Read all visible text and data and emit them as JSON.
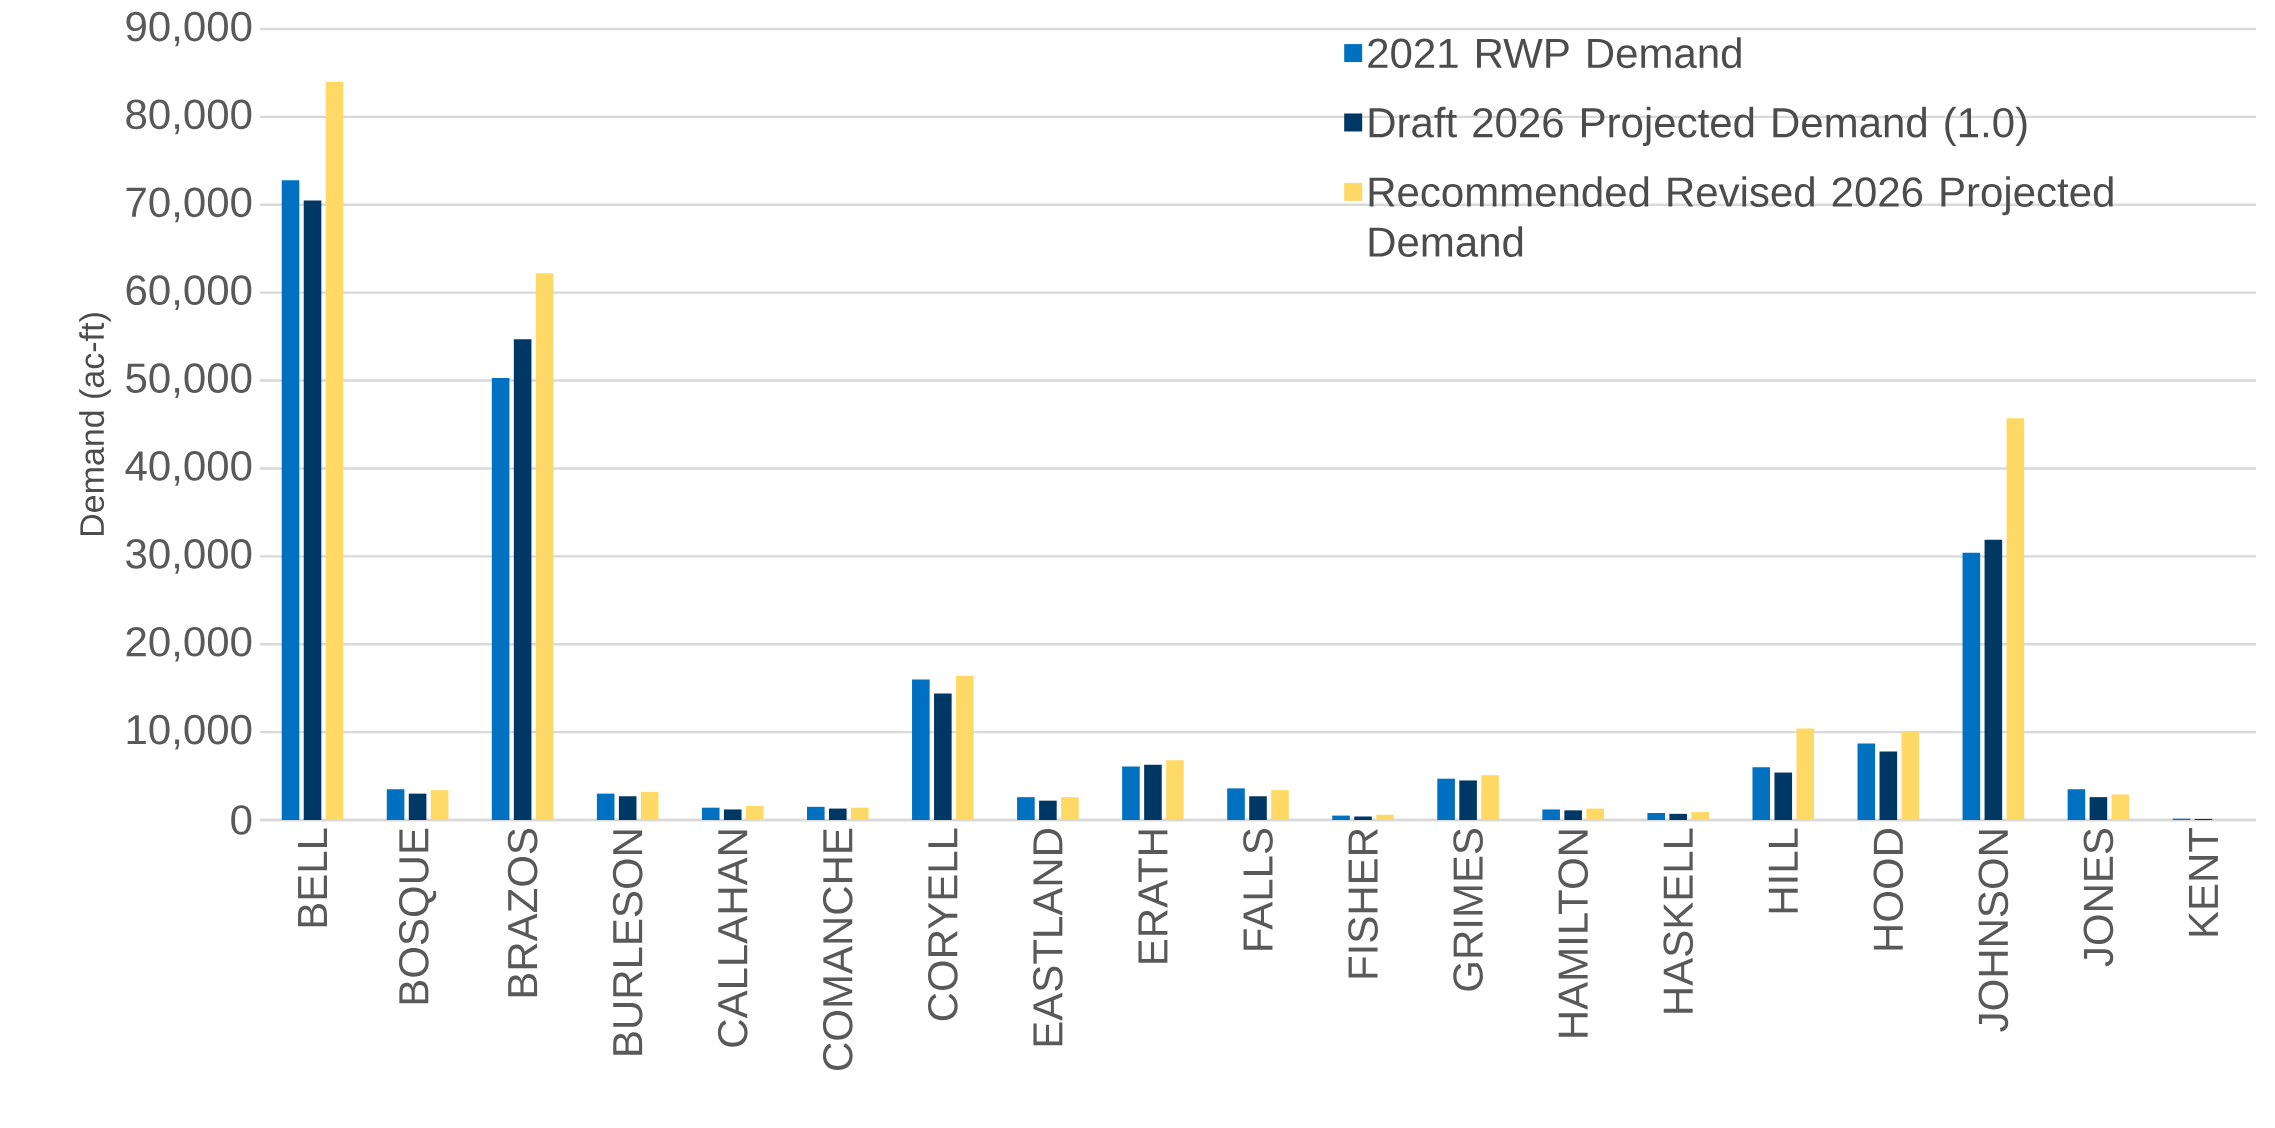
{
  "chart_data": {
    "type": "bar",
    "ylabel": "Demand (ac-ft)",
    "categories": [
      "BELL",
      "BOSQUE",
      "BRAZOS",
      "BURLESON",
      "CALLAHAN",
      "COMANCHE",
      "CORYELL",
      "EASTLAND",
      "ERATH",
      "FALLS",
      "FISHER",
      "GRIMES",
      "HAMILTON",
      "HASKELL",
      "HILL",
      "HOOD",
      "JOHNSON",
      "JONES",
      "KENT"
    ],
    "series": [
      {
        "name": "2021 RWP Demand",
        "color": "#0070c0",
        "values": [
          72800,
          3500,
          50300,
          3000,
          1400,
          1500,
          16000,
          2600,
          6100,
          3600,
          500,
          4700,
          1200,
          800,
          6000,
          8700,
          30400,
          3500,
          150
        ]
      },
      {
        "name": "Draft 2026 Projected Demand (1.0)",
        "color": "#003865",
        "values": [
          70500,
          3000,
          54700,
          2700,
          1200,
          1300,
          14400,
          2200,
          6300,
          2700,
          400,
          4500,
          1100,
          700,
          5400,
          7800,
          31900,
          2600,
          120
        ]
      },
      {
        "name": "Recommended Revised 2026 Projected Demand",
        "color": "#ffd966",
        "values": [
          84000,
          3400,
          62200,
          3200,
          1600,
          1400,
          16400,
          2600,
          6800,
          3400,
          600,
          5100,
          1300,
          900,
          10400,
          10000,
          45700,
          2900,
          100
        ]
      }
    ],
    "ylim": [
      0,
      90000
    ],
    "yticks": [
      {
        "value": 0,
        "label": "0"
      },
      {
        "value": 10000,
        "label": "10,000"
      },
      {
        "value": 20000,
        "label": "20,000"
      },
      {
        "value": 30000,
        "label": "30,000"
      },
      {
        "value": 40000,
        "label": "40,000"
      },
      {
        "value": 50000,
        "label": "50,000"
      },
      {
        "value": 60000,
        "label": "60,000"
      },
      {
        "value": 70000,
        "label": "70,000"
      },
      {
        "value": 80000,
        "label": "80,000"
      },
      {
        "value": 90000,
        "label": "90,000"
      }
    ],
    "grid": "y",
    "legend": "top right"
  }
}
